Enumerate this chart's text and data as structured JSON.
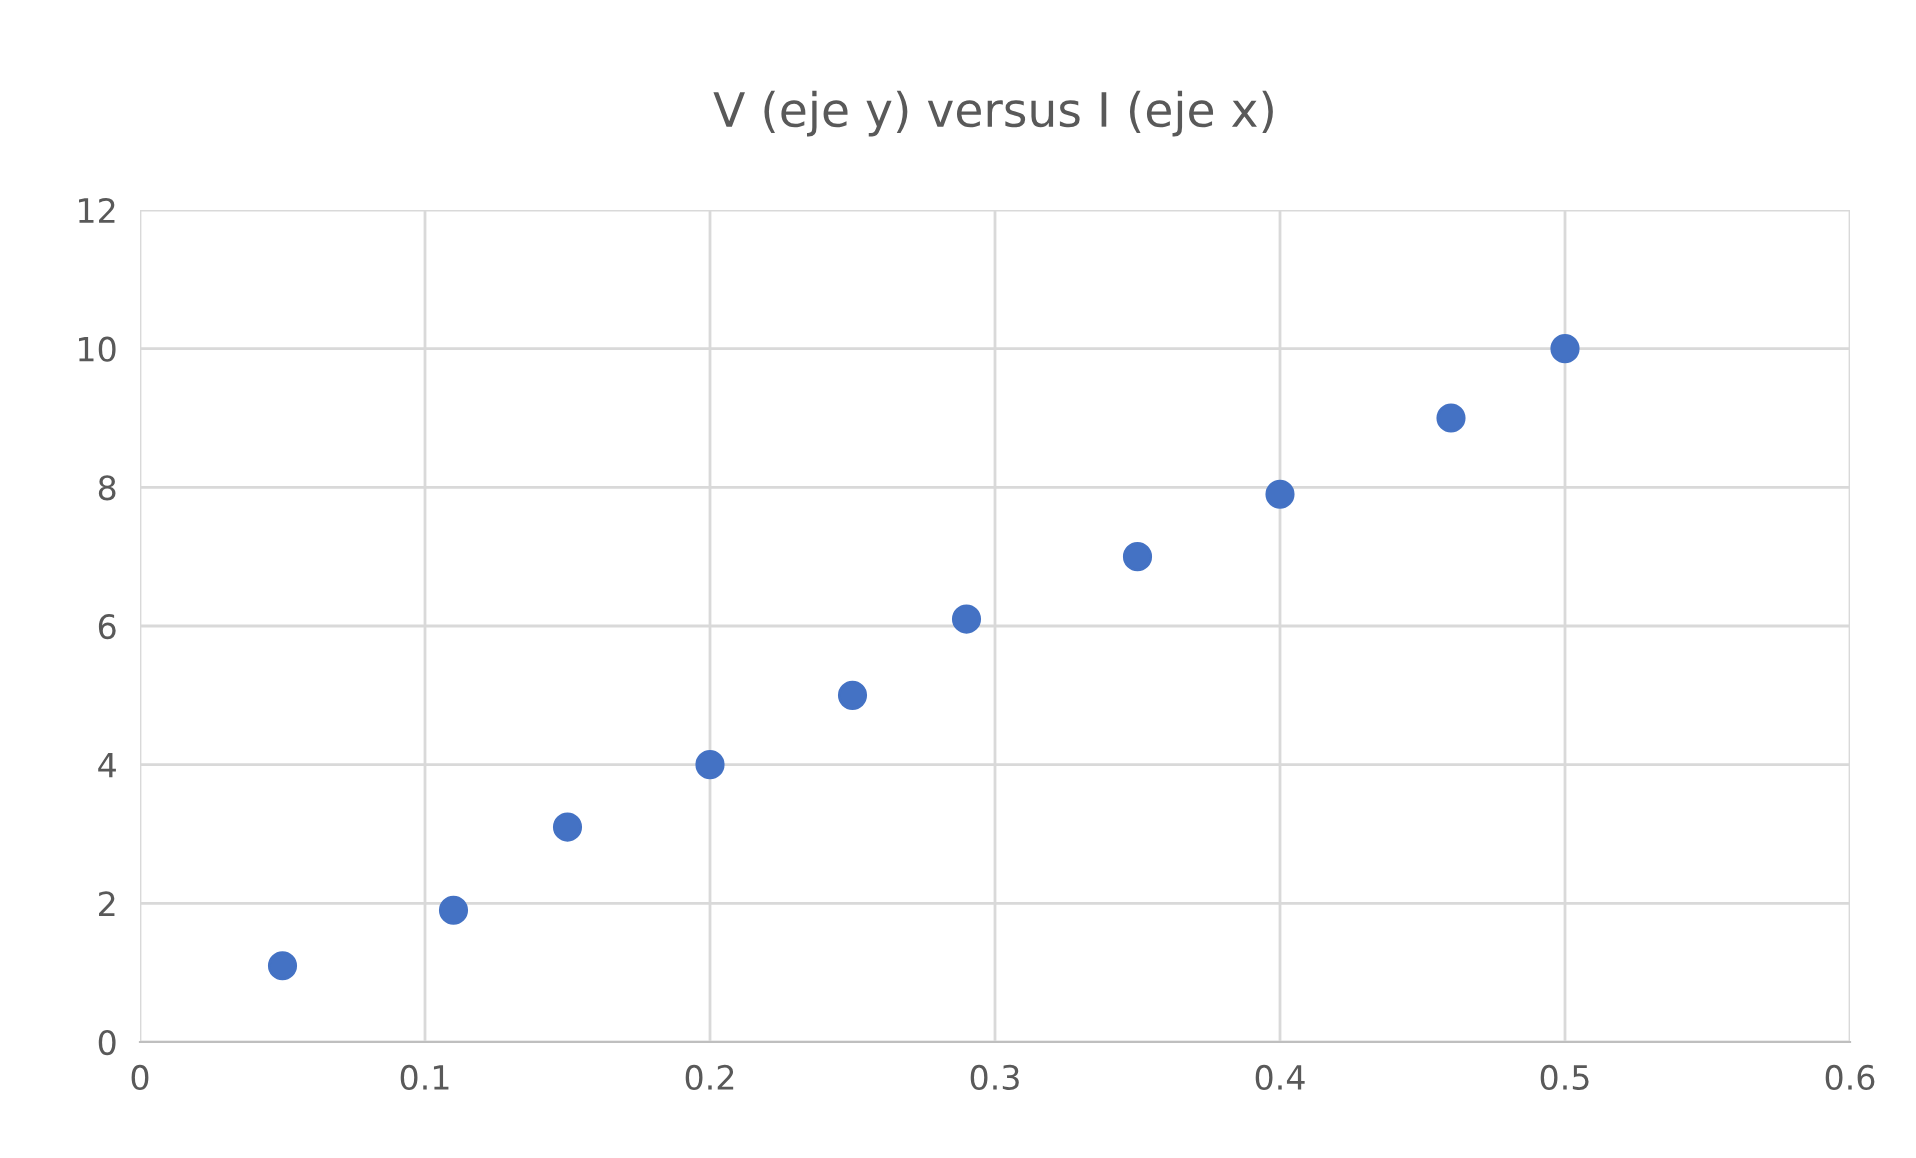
{
  "chart_data": {
    "type": "scatter",
    "title": "V (eje y) versus I (eje x)",
    "x": [
      0.05,
      0.11,
      0.15,
      0.2,
      0.25,
      0.29,
      0.35,
      0.4,
      0.46,
      0.5
    ],
    "values": [
      1.1,
      1.9,
      3.1,
      4.0,
      5.0,
      6.1,
      7.0,
      7.9,
      9.0,
      10.0
    ],
    "color": "#4472c4",
    "marker": "circle",
    "xlim": [
      0,
      0.6
    ],
    "xticks": [
      0,
      0.1,
      0.2,
      0.3,
      0.4,
      0.5,
      0.6
    ],
    "ylim": [
      0,
      12
    ],
    "yticks": [
      0,
      2,
      4,
      6,
      8,
      10,
      12
    ],
    "grid": true,
    "legend": false
  }
}
